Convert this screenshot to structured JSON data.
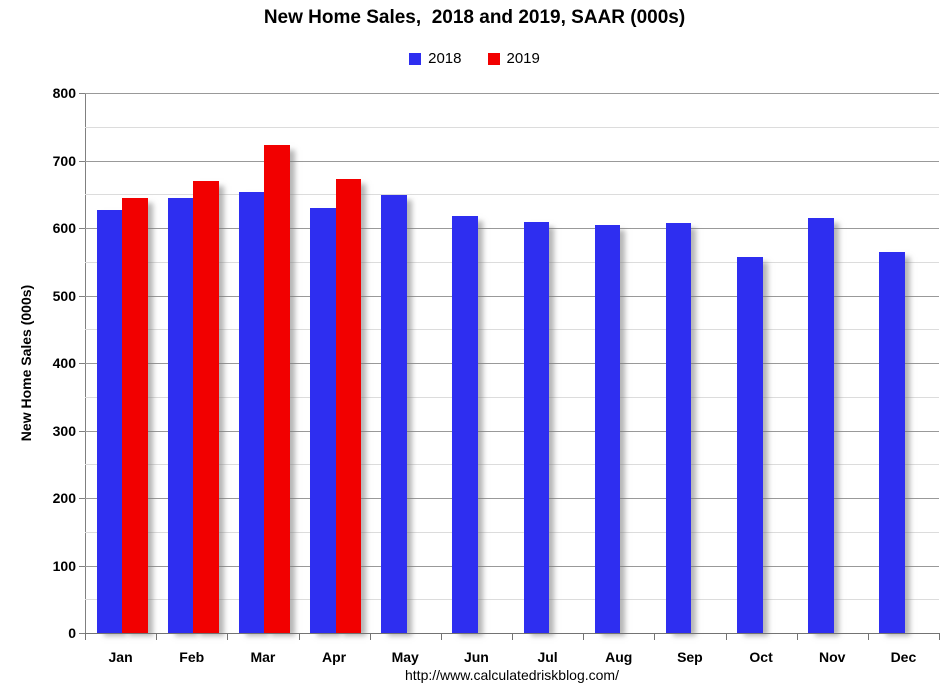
{
  "chart": {
    "title": "New Home Sales,  2018 and 2019, SAAR (000s)",
    "ylabel": "New Home Sales (000s)",
    "footer_url": "http://www.calculatedriskblog.com/"
  },
  "colors": {
    "series_2018": "#2E2EF0",
    "series_2019": "#F20000",
    "major_gridline": "#999999",
    "minor_gridline": "#dcdcdc",
    "axis": "#808080"
  },
  "chart_data": {
    "type": "bar",
    "title": "New Home Sales,  2018 and 2019, SAAR (000s)",
    "categories": [
      "Jan",
      "Feb",
      "Mar",
      "Apr",
      "May",
      "Jun",
      "Jul",
      "Aug",
      "Sep",
      "Oct",
      "Nov",
      "Dec"
    ],
    "series": [
      {
        "name": "2018",
        "color": "#2E2EF0",
        "values": [
          627,
          644,
          654,
          629,
          649,
          618,
          609,
          604,
          607,
          557,
          615,
          564
        ]
      },
      {
        "name": "2019",
        "color": "#F20000",
        "values": [
          644,
          669,
          723,
          673,
          null,
          null,
          null,
          null,
          null,
          null,
          null,
          null
        ]
      }
    ],
    "xlabel": "",
    "ylabel": "New Home Sales (000s)",
    "ylim": [
      0,
      800
    ],
    "ytick_step": 100,
    "minor_gridline_step": 50,
    "grid": true,
    "legend_position": "top-center",
    "annotation": "http://www.calculatedriskblog.com/"
  }
}
